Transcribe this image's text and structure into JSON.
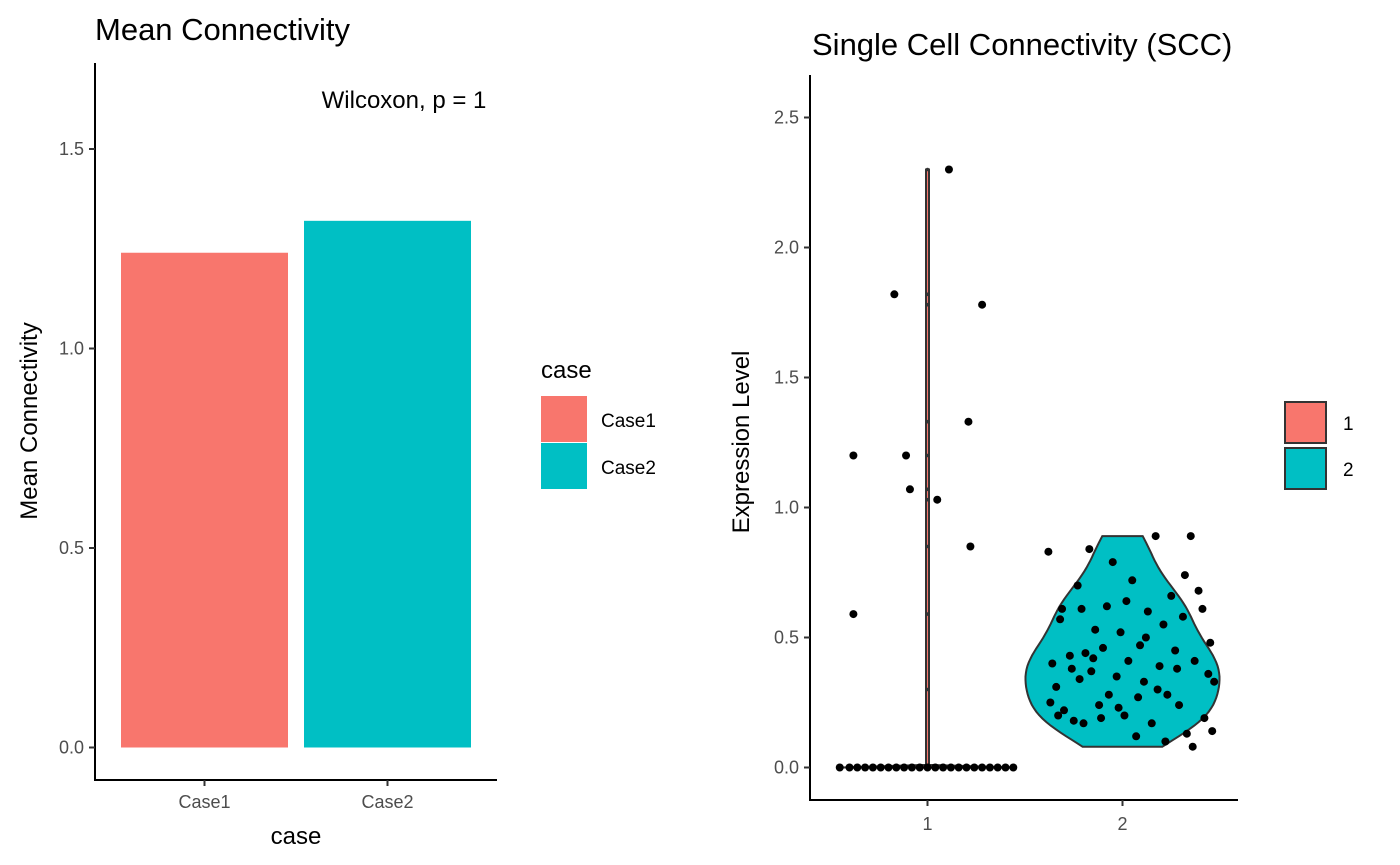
{
  "chart_data": [
    {
      "type": "bar",
      "title": "Mean Connectivity",
      "xlabel": "case",
      "ylabel": "Mean Connectivity",
      "categories": [
        "Case1",
        "Case2"
      ],
      "values": [
        1.24,
        1.32
      ],
      "colors": [
        "#F8766D",
        "#00BFC4"
      ],
      "ylim": [
        0,
        1.7
      ],
      "yticks": [
        "0.0",
        "0.5",
        "1.0",
        "1.5"
      ],
      "annotation": "Wilcoxon, p = 1",
      "legend": {
        "title": "case",
        "entries": [
          "Case1",
          "Case2"
        ],
        "position": "right"
      },
      "grid": false
    },
    {
      "type": "violin",
      "title": "Single Cell Connectivity (SCC)",
      "xlabel": "",
      "ylabel": "Expression Level",
      "categories": [
        "1",
        "2"
      ],
      "colors": [
        "#F8766D",
        "#00BFC4"
      ],
      "ylim": [
        0,
        2.6
      ],
      "yticks": [
        "0.0",
        "0.5",
        "1.0",
        "1.5",
        "2.0",
        "2.5"
      ],
      "legend": {
        "title": "",
        "entries": [
          "1",
          "2"
        ],
        "position": "right"
      },
      "grid": false,
      "points": [
        {
          "group": 1,
          "jitter": -0.38,
          "y": 1.2
        },
        {
          "group": 1,
          "jitter": -0.38,
          "y": 0.59
        },
        {
          "group": 1,
          "jitter": -0.17,
          "y": 1.82
        },
        {
          "group": 1,
          "jitter": -0.11,
          "y": 1.2
        },
        {
          "group": 1,
          "jitter": -0.09,
          "y": 1.07
        },
        {
          "group": 1,
          "jitter": 0.05,
          "y": 1.03
        },
        {
          "group": 1,
          "jitter": 0.11,
          "y": 2.3
        },
        {
          "group": 1,
          "jitter": 0.21,
          "y": 1.33
        },
        {
          "group": 1,
          "jitter": 0.22,
          "y": 0.85
        },
        {
          "group": 1,
          "jitter": 0.28,
          "y": 1.78
        },
        {
          "group": 1,
          "jitter": -0.45,
          "y": 0
        },
        {
          "group": 1,
          "jitter": -0.4,
          "y": 0
        },
        {
          "group": 1,
          "jitter": -0.36,
          "y": 0
        },
        {
          "group": 1,
          "jitter": -0.32,
          "y": 0
        },
        {
          "group": 1,
          "jitter": -0.28,
          "y": 0
        },
        {
          "group": 1,
          "jitter": -0.24,
          "y": 0
        },
        {
          "group": 1,
          "jitter": -0.2,
          "y": 0
        },
        {
          "group": 1,
          "jitter": -0.16,
          "y": 0
        },
        {
          "group": 1,
          "jitter": -0.12,
          "y": 0
        },
        {
          "group": 1,
          "jitter": -0.08,
          "y": 0
        },
        {
          "group": 1,
          "jitter": -0.04,
          "y": 0
        },
        {
          "group": 1,
          "jitter": 0.0,
          "y": 0
        },
        {
          "group": 1,
          "jitter": 0.04,
          "y": 0
        },
        {
          "group": 1,
          "jitter": 0.08,
          "y": 0
        },
        {
          "group": 1,
          "jitter": 0.12,
          "y": 0
        },
        {
          "group": 1,
          "jitter": 0.16,
          "y": 0
        },
        {
          "group": 1,
          "jitter": 0.2,
          "y": 0
        },
        {
          "group": 1,
          "jitter": 0.24,
          "y": 0
        },
        {
          "group": 1,
          "jitter": 0.28,
          "y": 0
        },
        {
          "group": 1,
          "jitter": 0.32,
          "y": 0
        },
        {
          "group": 1,
          "jitter": 0.36,
          "y": 0
        },
        {
          "group": 1,
          "jitter": 0.4,
          "y": 0
        },
        {
          "group": 1,
          "jitter": 0.44,
          "y": 0
        },
        {
          "group": 2,
          "jitter": -0.38,
          "y": 0.83
        },
        {
          "group": 2,
          "jitter": -0.36,
          "y": 0.4
        },
        {
          "group": 2,
          "jitter": -0.37,
          "y": 0.25
        },
        {
          "group": 2,
          "jitter": -0.34,
          "y": 0.31
        },
        {
          "group": 2,
          "jitter": -0.33,
          "y": 0.2
        },
        {
          "group": 2,
          "jitter": -0.31,
          "y": 0.61
        },
        {
          "group": 2,
          "jitter": -0.3,
          "y": 0.22
        },
        {
          "group": 2,
          "jitter": -0.27,
          "y": 0.43
        },
        {
          "group": 2,
          "jitter": -0.26,
          "y": 0.38
        },
        {
          "group": 2,
          "jitter": -0.23,
          "y": 0.7
        },
        {
          "group": 2,
          "jitter": -0.22,
          "y": 0.34
        },
        {
          "group": 2,
          "jitter": -0.2,
          "y": 0.17
        },
        {
          "group": 2,
          "jitter": -0.19,
          "y": 0.44
        },
        {
          "group": 2,
          "jitter": -0.17,
          "y": 0.84
        },
        {
          "group": 2,
          "jitter": -0.16,
          "y": 0.37
        },
        {
          "group": 2,
          "jitter": -0.14,
          "y": 0.53
        },
        {
          "group": 2,
          "jitter": -0.12,
          "y": 0.24
        },
        {
          "group": 2,
          "jitter": -0.1,
          "y": 0.46
        },
        {
          "group": 2,
          "jitter": -0.08,
          "y": 0.62
        },
        {
          "group": 2,
          "jitter": -0.07,
          "y": 0.28
        },
        {
          "group": 2,
          "jitter": -0.05,
          "y": 0.79
        },
        {
          "group": 2,
          "jitter": -0.03,
          "y": 0.35
        },
        {
          "group": 2,
          "jitter": -0.01,
          "y": 0.52
        },
        {
          "group": 2,
          "jitter": 0.01,
          "y": 0.2
        },
        {
          "group": 2,
          "jitter": 0.03,
          "y": 0.41
        },
        {
          "group": 2,
          "jitter": 0.05,
          "y": 0.72
        },
        {
          "group": 2,
          "jitter": 0.07,
          "y": 0.12
        },
        {
          "group": 2,
          "jitter": 0.09,
          "y": 0.47
        },
        {
          "group": 2,
          "jitter": 0.11,
          "y": 0.33
        },
        {
          "group": 2,
          "jitter": 0.13,
          "y": 0.6
        },
        {
          "group": 2,
          "jitter": 0.15,
          "y": 0.17
        },
        {
          "group": 2,
          "jitter": 0.17,
          "y": 0.89
        },
        {
          "group": 2,
          "jitter": 0.19,
          "y": 0.39
        },
        {
          "group": 2,
          "jitter": 0.21,
          "y": 0.55
        },
        {
          "group": 2,
          "jitter": 0.23,
          "y": 0.28
        },
        {
          "group": 2,
          "jitter": 0.25,
          "y": 0.66
        },
        {
          "group": 2,
          "jitter": 0.27,
          "y": 0.45
        },
        {
          "group": 2,
          "jitter": 0.29,
          "y": 0.24
        },
        {
          "group": 2,
          "jitter": 0.31,
          "y": 0.58
        },
        {
          "group": 2,
          "jitter": 0.33,
          "y": 0.13
        },
        {
          "group": 2,
          "jitter": 0.35,
          "y": 0.89
        },
        {
          "group": 2,
          "jitter": 0.37,
          "y": 0.41
        },
        {
          "group": 2,
          "jitter": 0.39,
          "y": 0.68
        },
        {
          "group": 2,
          "jitter": 0.41,
          "y": 0.61
        },
        {
          "group": 2,
          "jitter": 0.42,
          "y": 0.19
        },
        {
          "group": 2,
          "jitter": 0.44,
          "y": 0.36
        },
        {
          "group": 2,
          "jitter": 0.45,
          "y": 0.48
        },
        {
          "group": 2,
          "jitter": 0.46,
          "y": 0.14
        },
        {
          "group": 2,
          "jitter": 0.47,
          "y": 0.33
        },
        {
          "group": 2,
          "jitter": -0.32,
          "y": 0.57
        },
        {
          "group": 2,
          "jitter": -0.21,
          "y": 0.61
        },
        {
          "group": 2,
          "jitter": -0.11,
          "y": 0.19
        },
        {
          "group": 2,
          "jitter": -0.02,
          "y": 0.23
        },
        {
          "group": 2,
          "jitter": 0.08,
          "y": 0.27
        },
        {
          "group": 2,
          "jitter": 0.18,
          "y": 0.3
        },
        {
          "group": 2,
          "jitter": 0.28,
          "y": 0.38
        },
        {
          "group": 2,
          "jitter": 0.36,
          "y": 0.08
        },
        {
          "group": 2,
          "jitter": -0.15,
          "y": 0.42
        },
        {
          "group": 2,
          "jitter": 0.12,
          "y": 0.5
        },
        {
          "group": 2,
          "jitter": 0.22,
          "y": 0.1
        },
        {
          "group": 2,
          "jitter": -0.25,
          "y": 0.18
        },
        {
          "group": 2,
          "jitter": 0.02,
          "y": 0.64
        },
        {
          "group": 2,
          "jitter": 0.32,
          "y": 0.74
        }
      ]
    }
  ]
}
